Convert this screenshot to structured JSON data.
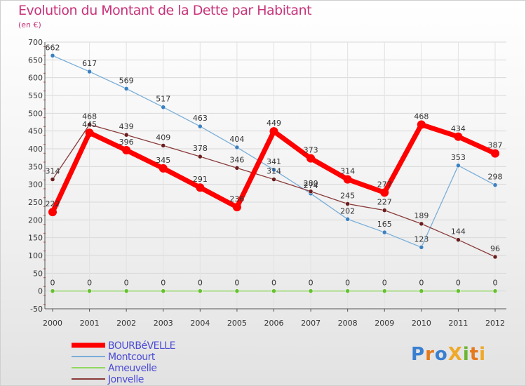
{
  "title": "Evolution du Montant de la Dette par Habitant",
  "subtitle": "(en €)",
  "logo": "ProXiti",
  "chart_data": {
    "type": "line",
    "title": "Evolution du Montant de la Dette par Habitant",
    "ylabel": "(en €)",
    "xlabel": "",
    "x": [
      "2000",
      "2001",
      "2002",
      "2003",
      "2004",
      "2005",
      "2006",
      "2007",
      "2008",
      "2009",
      "2010",
      "2011",
      "2012"
    ],
    "ylim": [
      -50,
      700
    ],
    "yticks": [
      -50,
      0,
      50,
      100,
      150,
      200,
      250,
      300,
      350,
      400,
      450,
      500,
      550,
      600,
      650,
      700
    ],
    "grid": true,
    "legend_position": "bottom-left",
    "series": [
      {
        "name": "BOURBéVELLE",
        "color": "#ff0000",
        "marker": "#ff0000",
        "width": "thick",
        "values": [
          222,
          445,
          396,
          345,
          291,
          236,
          449,
          373,
          314,
          277,
          468,
          434,
          387
        ],
        "labels": [
          "222",
          "445",
          "396",
          "345",
          "291",
          "236",
          "449",
          "373",
          "314",
          "277",
          "468",
          "434",
          "387"
        ]
      },
      {
        "name": "Montcourt",
        "color": "#7aaed8",
        "marker": "#3b80c0",
        "width": "thin",
        "values": [
          662,
          617,
          569,
          517,
          463,
          404,
          341,
          274,
          202,
          165,
          123,
          353,
          298
        ],
        "labels": [
          "662",
          "617",
          "569",
          "517",
          "463",
          "404",
          "341",
          "274",
          "202",
          "165",
          "123",
          "353",
          "298"
        ]
      },
      {
        "name": "Ameuvelle",
        "color": "#90d860",
        "marker": "#66c030",
        "width": "thin",
        "values": [
          0,
          0,
          0,
          0,
          0,
          0,
          0,
          0,
          0,
          0,
          0,
          0,
          0
        ],
        "labels": [
          "0",
          "0",
          "0",
          "0",
          "0",
          "0",
          "0",
          "0",
          "0",
          "0",
          "0",
          "0",
          "0"
        ]
      },
      {
        "name": "Jonvelle",
        "color": "#8a3a3a",
        "marker": "#6a1e1e",
        "width": "thin",
        "values": [
          314,
          468,
          439,
          409,
          378,
          346,
          314,
          280,
          245,
          227,
          189,
          144,
          96
        ],
        "labels": [
          "314",
          "468",
          "439",
          "409",
          "378",
          "346",
          "314",
          "280",
          "245",
          "227",
          "189",
          "144",
          "96"
        ]
      }
    ]
  }
}
